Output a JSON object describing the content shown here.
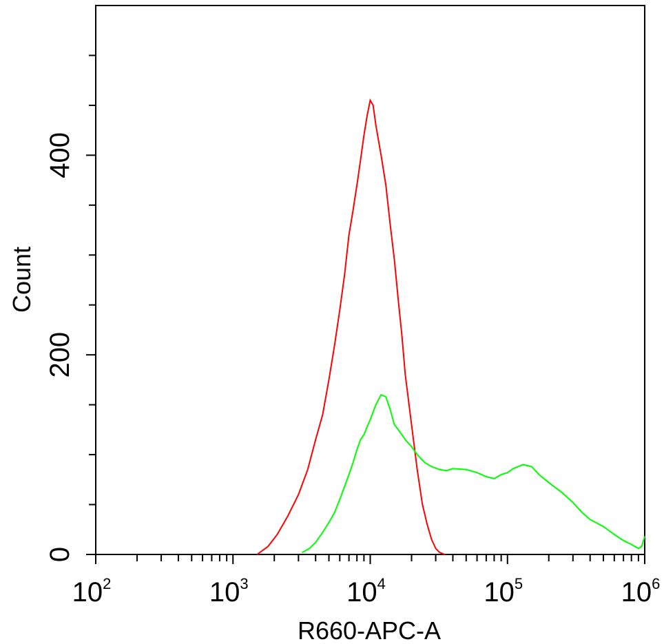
{
  "chart_data": {
    "type": "line",
    "title": "",
    "xlabel": "R660-APC-A",
    "ylabel": "Count",
    "x_scale": "log",
    "xlim": [
      100,
      1000000
    ],
    "ylim": [
      0,
      550
    ],
    "x_ticks": [
      {
        "base": "10",
        "exp": "2"
      },
      {
        "base": "10",
        "exp": "3"
      },
      {
        "base": "10",
        "exp": "4"
      },
      {
        "base": "10",
        "exp": "5"
      },
      {
        "base": "10",
        "exp": "6"
      }
    ],
    "y_ticks": [
      "0",
      "200",
      "400"
    ],
    "y_tick_values": [
      0,
      200,
      400
    ],
    "grid": false,
    "legend": false,
    "series": [
      {
        "color": "#ff0000",
        "x": [
          1500,
          1800,
          2100,
          2500,
          3000,
          3500,
          4000,
          4500,
          5000,
          5500,
          6000,
          6500,
          7000,
          7500,
          8000,
          8500,
          9000,
          9500,
          10000,
          10500,
          11000,
          12000,
          13000,
          14000,
          15000,
          16000,
          17000,
          18000,
          20000,
          22000,
          24000,
          26000,
          28000,
          30000,
          32000,
          35000
        ],
        "y": [
          0,
          8,
          20,
          38,
          60,
          85,
          115,
          140,
          175,
          210,
          245,
          280,
          320,
          345,
          370,
          395,
          420,
          440,
          455,
          450,
          430,
          400,
          370,
          330,
          295,
          255,
          220,
          180,
          130,
          85,
          50,
          30,
          15,
          6,
          2,
          0
        ]
      },
      {
        "color": "#00ff00",
        "x": [
          3200,
          3600,
          4000,
          4500,
          5000,
          5500,
          6000,
          6500,
          7000,
          7500,
          8000,
          8500,
          9000,
          9500,
          10000,
          11000,
          12000,
          13000,
          14000,
          15000,
          16000,
          17000,
          18000,
          20000,
          22000,
          25000,
          28000,
          32000,
          36000,
          40000,
          50000,
          60000,
          70000,
          80000,
          90000,
          100000,
          110000,
          130000,
          150000,
          170000,
          200000,
          250000,
          300000,
          350000,
          400000,
          500000,
          600000,
          700000,
          800000,
          900000,
          950000,
          1000000
        ],
        "y": [
          2,
          6,
          12,
          22,
          32,
          42,
          55,
          68,
          80,
          92,
          105,
          115,
          120,
          128,
          135,
          150,
          160,
          158,
          145,
          130,
          125,
          120,
          115,
          108,
          100,
          92,
          88,
          85,
          84,
          86,
          85,
          82,
          78,
          76,
          80,
          82,
          86,
          90,
          88,
          80,
          72,
          62,
          52,
          42,
          35,
          28,
          20,
          14,
          10,
          6,
          8,
          18
        ]
      }
    ]
  }
}
